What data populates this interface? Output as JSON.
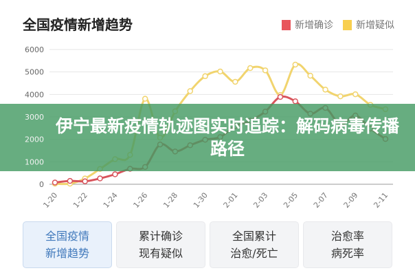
{
  "header": {
    "title": "全国疫情新增趋势"
  },
  "banner": {
    "text": "伊宁最新疫情轨迹图实时追踪：解码病毒传播路径"
  },
  "buttons": [
    {
      "line1": "全国疫情",
      "line2": "新增趋势",
      "active": true
    },
    {
      "line1": "累计确诊",
      "line2": "现有疑似",
      "active": false
    },
    {
      "line1": "全国累计",
      "line2": "治愈/死亡",
      "active": false
    },
    {
      "line1": "治愈率",
      "line2": "病死率",
      "active": false
    }
  ],
  "chart_data": {
    "type": "line",
    "title": "全国疫情新增趋势",
    "legend_position": "top-right",
    "grid": true,
    "ylim": [
      0,
      6000
    ],
    "yticks": [
      "0",
      "1000",
      "2000",
      "3000",
      "4000",
      "5000",
      "6000"
    ],
    "x": [
      "1-20",
      "1-21",
      "1-22",
      "1-23",
      "1-24",
      "1-25",
      "1-26",
      "1-27",
      "1-28",
      "1-29",
      "1-30",
      "1-31",
      "2-01",
      "2-02",
      "2-03",
      "2-04",
      "2-05",
      "2-06",
      "2-07",
      "2-08",
      "2-09",
      "2-10",
      "2-11"
    ],
    "xtick_labels": [
      "1-20",
      "1-22",
      "1-24",
      "1-26",
      "1-28",
      "1-30",
      "2-01",
      "2-03",
      "2-05",
      "2-07",
      "2-09",
      "2-11"
    ],
    "series": [
      {
        "name": "新增确诊",
        "color": "#e8555b",
        "line_color": "#d9545c",
        "values": [
          77,
          149,
          131,
          259,
          444,
          688,
          769,
          1771,
          1459,
          1737,
          1982,
          2102,
          2590,
          2829,
          3235,
          3887,
          3694,
          3143,
          3399,
          2656,
          3062,
          2478,
          2015
        ]
      },
      {
        "name": "新增疑似",
        "color": "#f8cf4f",
        "line_color": "#f1d46e",
        "values": [
          27,
          26,
          257,
          680,
          1118,
          1309,
          3806,
          2077,
          3248,
          4148,
          4812,
          5019,
          4562,
          5173,
          5072,
          3971,
          5328,
          4833,
          4214,
          3916,
          4008,
          3536,
          3342
        ]
      }
    ]
  }
}
